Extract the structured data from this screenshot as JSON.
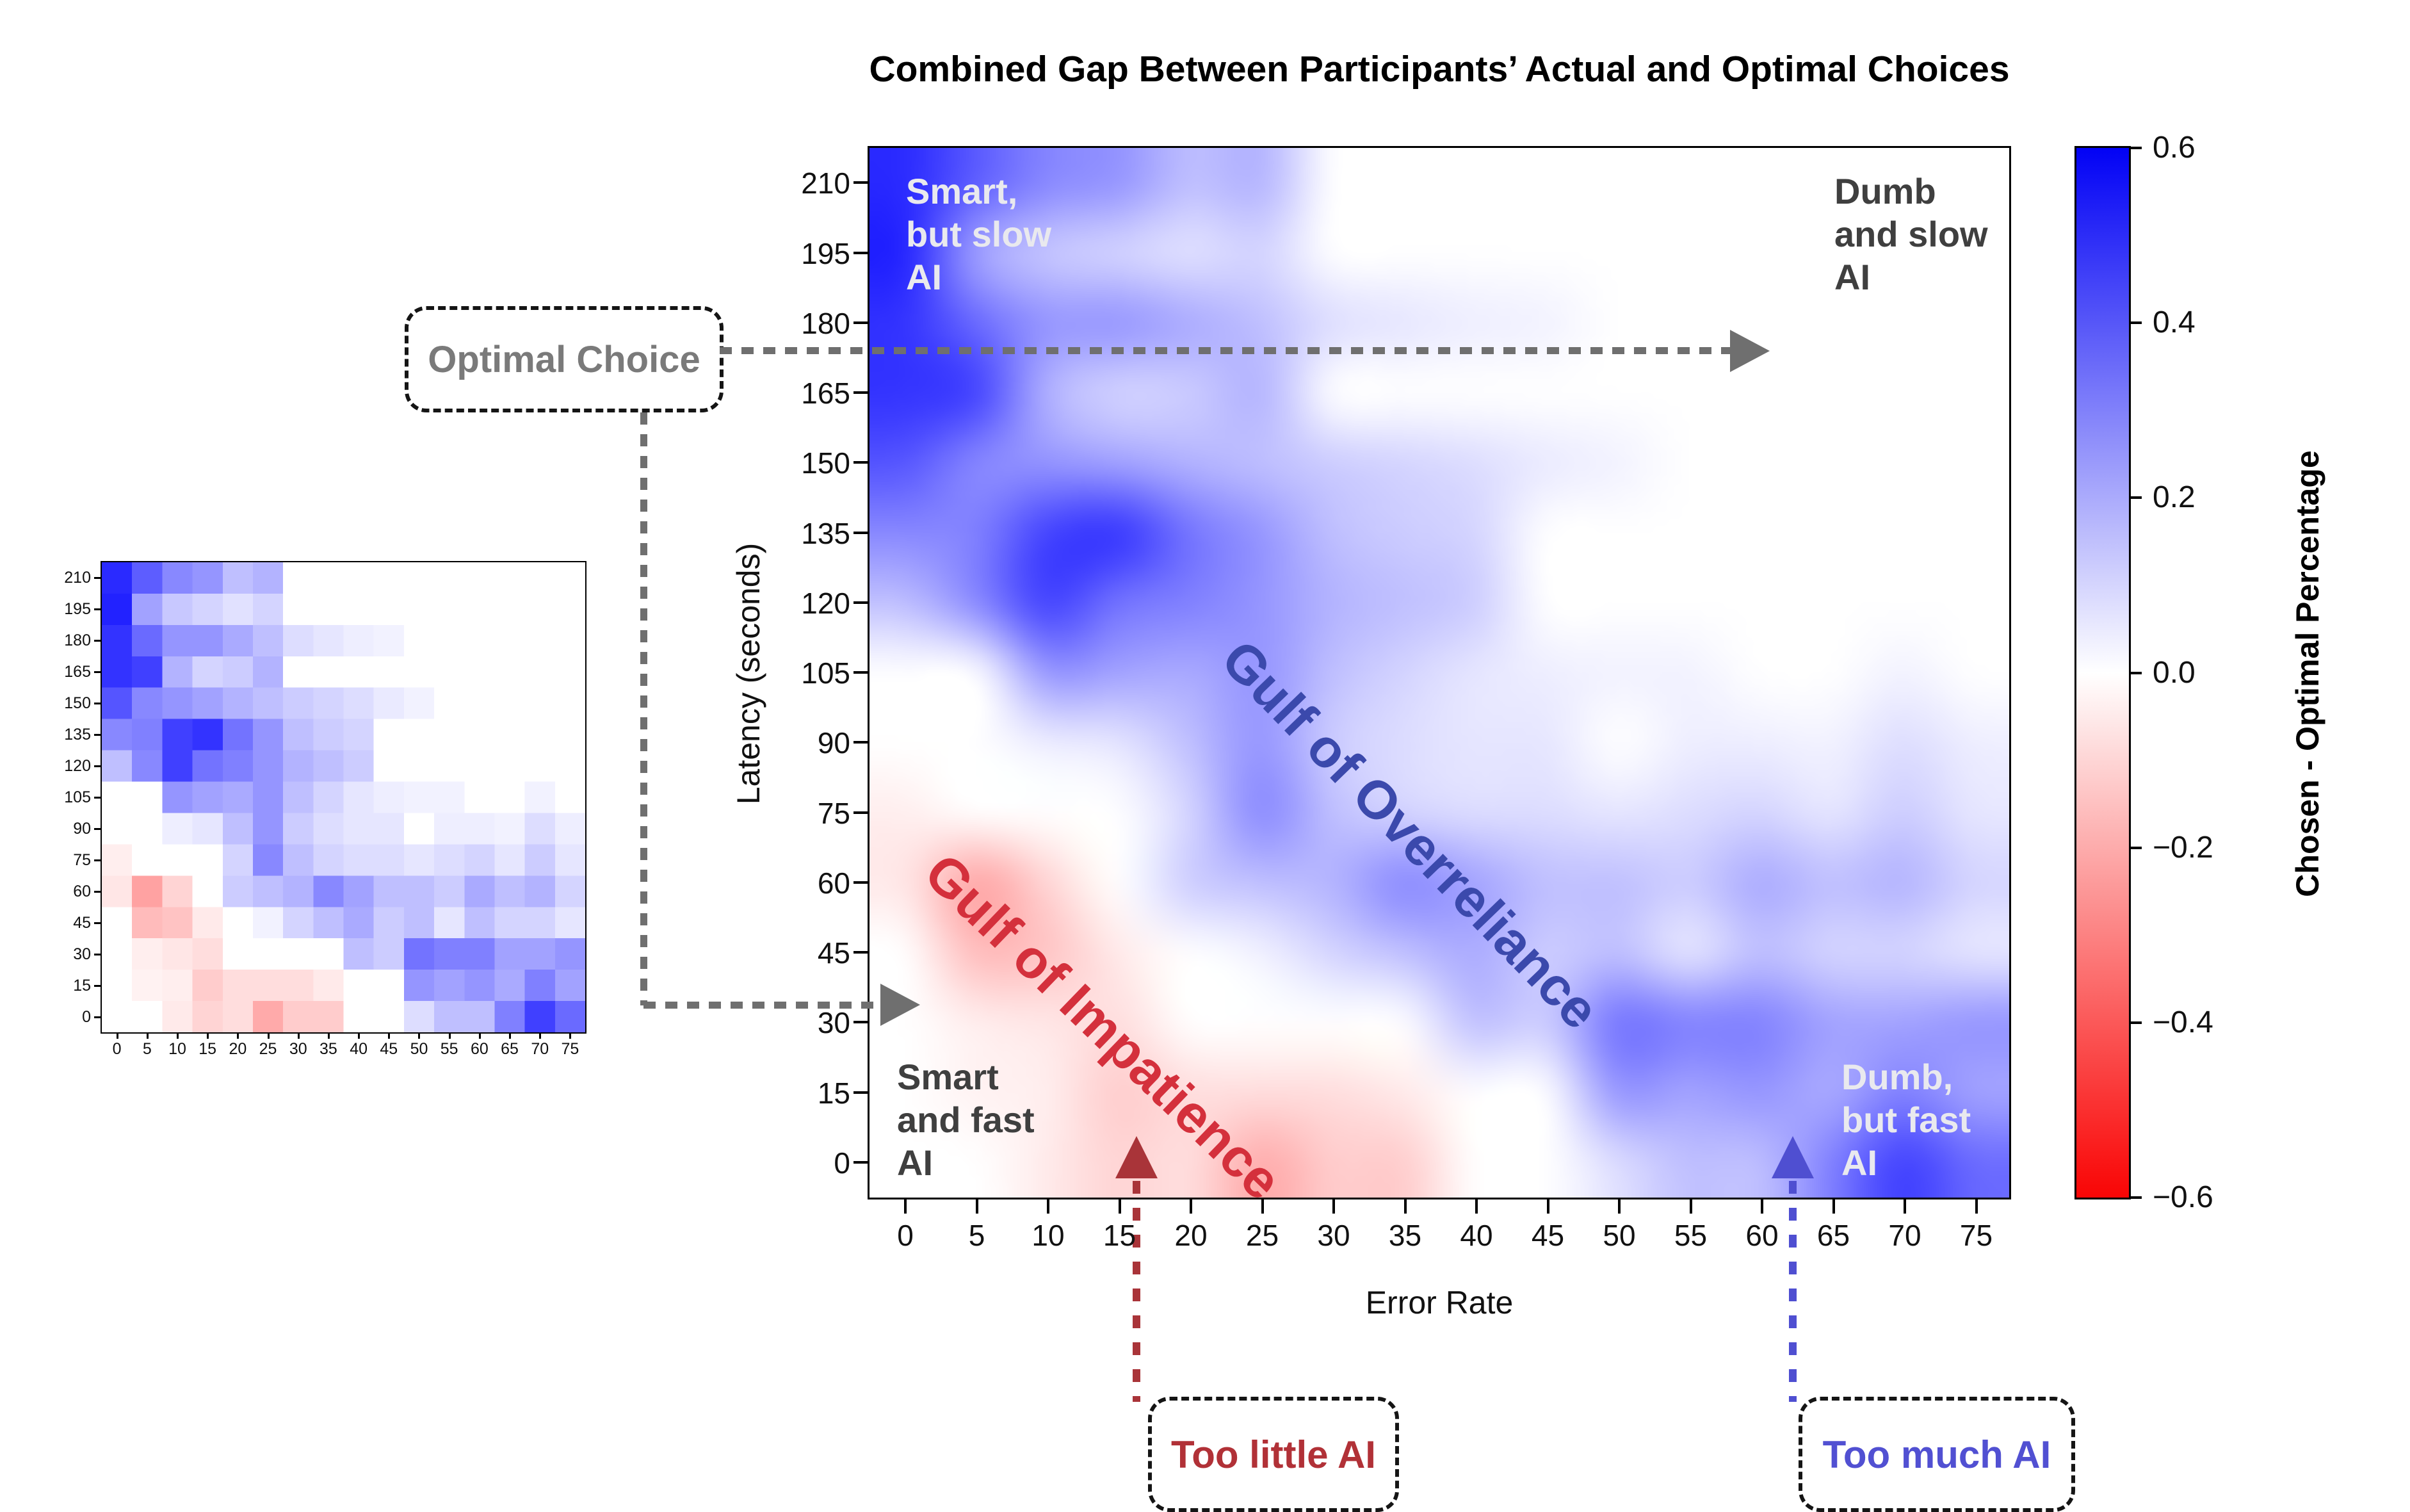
{
  "title": "Combined Gap Between Participants’ Actual and Optimal Choices",
  "axes": {
    "x_label": "Error Rate",
    "y_label": "Latency (seconds)",
    "x_ticks": [
      "0",
      "5",
      "10",
      "15",
      "20",
      "25",
      "30",
      "35",
      "40",
      "45",
      "50",
      "55",
      "60",
      "65",
      "70",
      "75"
    ],
    "y_ticks": [
      "0",
      "15",
      "30",
      "45",
      "60",
      "75",
      "90",
      "105",
      "120",
      "135",
      "150",
      "165",
      "180",
      "195",
      "210"
    ]
  },
  "colorbar": {
    "label": "Chosen - Optimal Percentage",
    "ticks": [
      "0.6",
      "0.4",
      "0.2",
      "0.0",
      "−0.2",
      "−0.4",
      "−0.6"
    ],
    "tick_values": [
      0.6,
      0.4,
      0.2,
      0.0,
      -0.2,
      -0.4,
      -0.6
    ],
    "top_color": "#0000ff",
    "mid_color": "#ffffff",
    "bottom_color": "#ff0000"
  },
  "annotations": {
    "optimal_choice": "Optimal Choice",
    "too_little": "Too little AI",
    "too_much": "Too much AI",
    "gulf_overreliance": "Gulf of Overreliance",
    "gulf_impatience": "Gulf of Impatience",
    "corner_top_left": [
      "Smart,",
      "but slow",
      "AI"
    ],
    "corner_top_right": [
      "Dumb",
      "and slow",
      "AI"
    ],
    "corner_bottom_left": [
      "Smart",
      "and fast",
      "AI"
    ],
    "corner_bottom_right": [
      "Dumb,",
      "but fast",
      "AI"
    ]
  },
  "colors": {
    "gulf_overreliance_text": "#3b49ac",
    "gulf_impatience_text": "#d4303c",
    "optimal_choice_text": "#7a7a7a",
    "too_little_text": "#b13137",
    "too_much_text": "#5150d2",
    "gray_arrow": "#6f6f6f",
    "red_arrow": "#a93439",
    "blue_arrow": "#4f4fd1",
    "corner_light_text": "#e9e9ee",
    "corner_dark_text": "#3f3f3f"
  },
  "chart_data": {
    "type": "heatmap",
    "title": "Combined Gap Between Participants’ Actual and Optimal Choices",
    "xlabel": "Error Rate",
    "ylabel": "Latency (seconds)",
    "colorbar_label": "Chosen - Optimal Percentage",
    "value_range": [
      -0.6,
      0.6
    ],
    "colormap": "blue-white-red (positive=blue, negative=red)",
    "x_values": [
      0,
      5,
      10,
      15,
      20,
      25,
      30,
      35,
      40,
      45,
      50,
      55,
      60,
      65,
      70,
      75
    ],
    "y_values": [
      210,
      195,
      180,
      165,
      150,
      135,
      120,
      105,
      90,
      75,
      60,
      45,
      30,
      15,
      0
    ],
    "grid_rows_top_to_bottom": [
      [
        0.5,
        0.38,
        0.28,
        0.25,
        0.15,
        0.18,
        0.0,
        0.0,
        0.0,
        0.0,
        0.0,
        0.0,
        0.0,
        0.0,
        0.0,
        0.0
      ],
      [
        0.52,
        0.22,
        0.13,
        0.1,
        0.07,
        0.1,
        0.0,
        0.0,
        0.0,
        0.0,
        0.0,
        0.0,
        0.0,
        0.0,
        0.0,
        0.0
      ],
      [
        0.48,
        0.35,
        0.25,
        0.25,
        0.2,
        0.15,
        0.08,
        0.06,
        0.04,
        0.03,
        0.0,
        0.0,
        0.0,
        0.0,
        0.0,
        0.0
      ],
      [
        0.48,
        0.45,
        0.18,
        0.1,
        0.12,
        0.18,
        0.0,
        0.0,
        0.0,
        0.0,
        0.0,
        0.0,
        0.0,
        0.0,
        0.0,
        0.0
      ],
      [
        0.4,
        0.28,
        0.25,
        0.22,
        0.18,
        0.15,
        0.12,
        0.1,
        0.08,
        0.05,
        0.03,
        0.0,
        0.0,
        0.0,
        0.0,
        0.0
      ],
      [
        0.28,
        0.3,
        0.45,
        0.48,
        0.33,
        0.25,
        0.15,
        0.12,
        0.1,
        0.0,
        0.0,
        0.0,
        0.0,
        0.0,
        0.0,
        0.0
      ],
      [
        0.15,
        0.28,
        0.45,
        0.33,
        0.3,
        0.25,
        0.18,
        0.15,
        0.12,
        0.0,
        0.0,
        0.0,
        0.0,
        0.0,
        0.0,
        0.0
      ],
      [
        0.0,
        0.0,
        0.25,
        0.22,
        0.2,
        0.25,
        0.15,
        0.1,
        0.06,
        0.04,
        0.03,
        0.03,
        0.0,
        0.0,
        0.03,
        0.0
      ],
      [
        0.0,
        0.0,
        0.04,
        0.06,
        0.15,
        0.25,
        0.12,
        0.08,
        0.06,
        0.06,
        0.0,
        0.04,
        0.04,
        0.03,
        0.08,
        0.04
      ],
      [
        -0.04,
        0.0,
        0.0,
        0.0,
        0.1,
        0.28,
        0.15,
        0.1,
        0.08,
        0.08,
        0.06,
        0.08,
        0.1,
        0.06,
        0.12,
        0.06
      ],
      [
        -0.06,
        -0.22,
        -0.1,
        0.0,
        0.12,
        0.15,
        0.18,
        0.28,
        0.22,
        0.15,
        0.15,
        0.12,
        0.2,
        0.15,
        0.18,
        0.1
      ],
      [
        0.0,
        -0.16,
        -0.14,
        -0.05,
        0.0,
        0.03,
        0.1,
        0.15,
        0.2,
        0.12,
        0.15,
        0.06,
        0.15,
        0.1,
        0.1,
        0.06
      ],
      [
        0.0,
        -0.04,
        -0.06,
        -0.08,
        0.0,
        0.0,
        0.0,
        0.0,
        0.15,
        0.12,
        0.33,
        0.3,
        0.3,
        0.22,
        0.22,
        0.25
      ],
      [
        0.0,
        -0.03,
        -0.04,
        -0.12,
        -0.08,
        -0.08,
        -0.08,
        -0.05,
        0.0,
        0.0,
        0.25,
        0.22,
        0.25,
        0.2,
        0.3,
        0.22
      ],
      [
        0.0,
        0.0,
        -0.05,
        -0.1,
        -0.08,
        -0.2,
        -0.12,
        -0.12,
        0.0,
        0.0,
        0.08,
        0.15,
        0.15,
        0.3,
        0.45,
        0.35
      ]
    ]
  }
}
